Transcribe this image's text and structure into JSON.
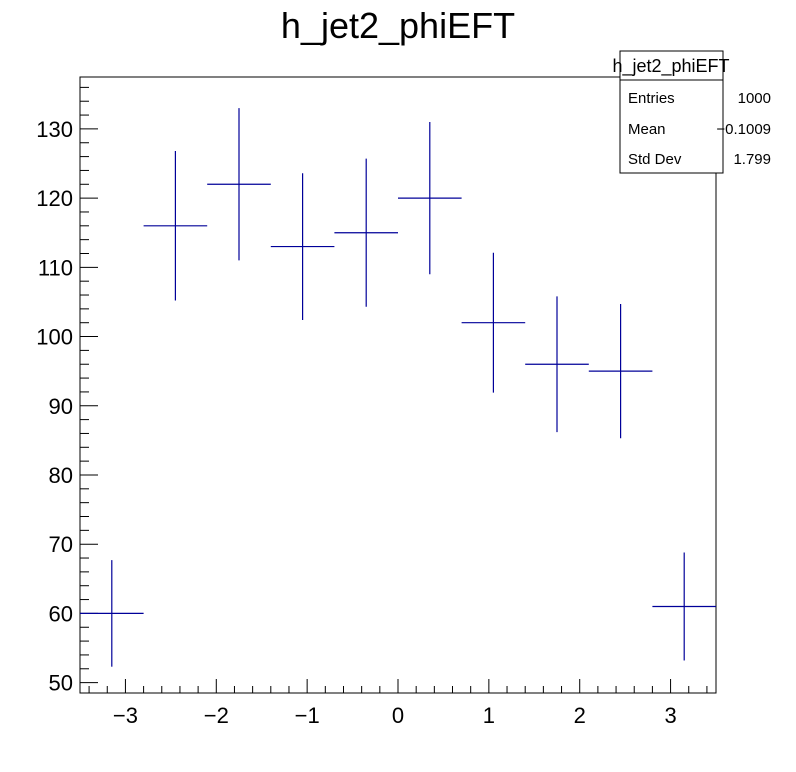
{
  "chart_data": {
    "type": "histogram",
    "title": "h_jet2_phiEFT",
    "xlabel": "",
    "ylabel": "",
    "xlim": [
      -3.5,
      3.5
    ],
    "ylim": [
      48.5,
      137.5
    ],
    "x_ticks": [
      -3,
      -2,
      -1,
      0,
      1,
      2,
      3
    ],
    "x_tick_labels": [
      "−3",
      "−2",
      "−1",
      "0",
      "1",
      "2",
      "3"
    ],
    "y_ticks": [
      50,
      60,
      70,
      80,
      90,
      100,
      110,
      120,
      130
    ],
    "y_tick_labels": [
      "50",
      "60",
      "70",
      "80",
      "90",
      "100",
      "110",
      "120",
      "130"
    ],
    "line_color": "#000099",
    "grid": false,
    "legend": "none",
    "bin_edges": [
      -3.5,
      -2.8,
      -2.1,
      -1.4,
      -0.7,
      0.0,
      0.7,
      1.4,
      2.1,
      2.8,
      3.5
    ],
    "bins": [
      {
        "x": -3.15,
        "y": 60,
        "err": 7.7
      },
      {
        "x": -2.45,
        "y": 116,
        "err": 10.8
      },
      {
        "x": -1.75,
        "y": 122,
        "err": 11.0
      },
      {
        "x": -1.05,
        "y": 113,
        "err": 10.6
      },
      {
        "x": -0.35,
        "y": 115,
        "err": 10.7
      },
      {
        "x": 0.35,
        "y": 120,
        "err": 11.0
      },
      {
        "x": 1.05,
        "y": 102,
        "err": 10.1
      },
      {
        "x": 1.75,
        "y": 96,
        "err": 9.8
      },
      {
        "x": 2.45,
        "y": 95,
        "err": 9.7
      },
      {
        "x": 3.15,
        "y": 61,
        "err": 7.8
      }
    ],
    "stats": {
      "title": "h_jet2_phiEFT",
      "entries_label": "Entries",
      "entries_value": "1000",
      "mean_label": "Mean",
      "mean_value": "−0.1009",
      "stddev_label": "Std Dev",
      "stddev_value": "1.799"
    }
  }
}
